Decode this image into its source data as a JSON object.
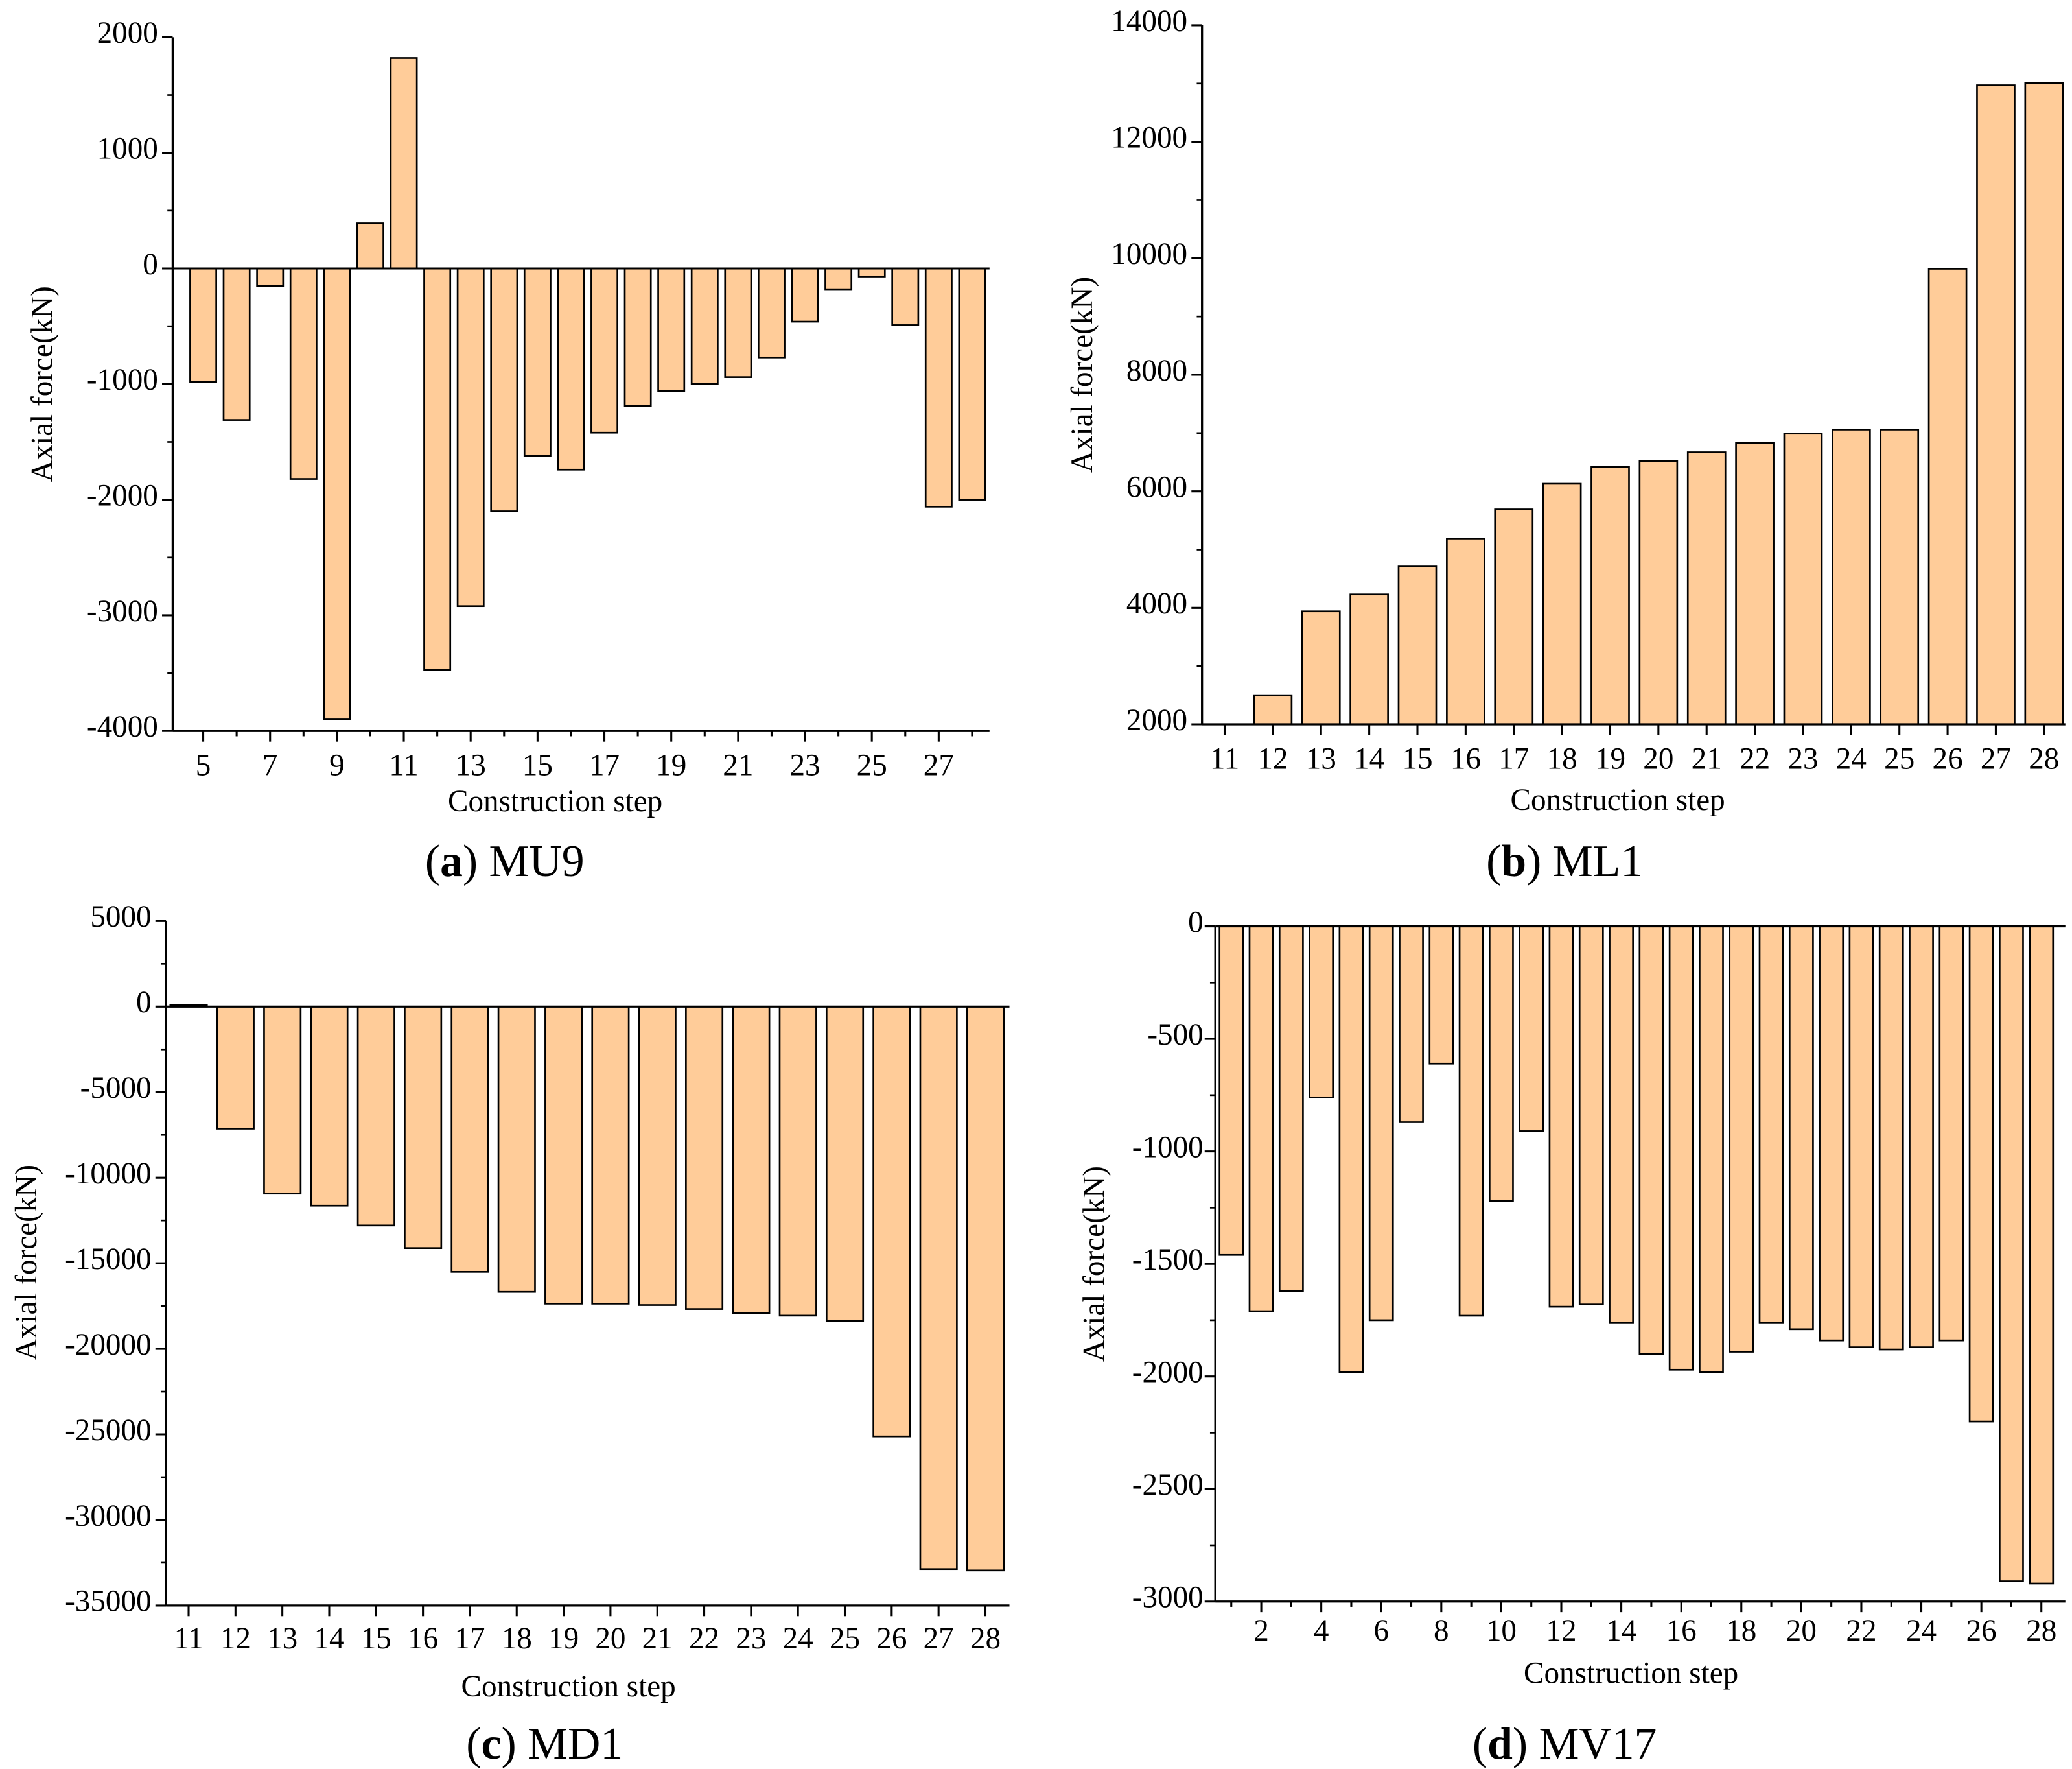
{
  "colors": {
    "bar_fill": "#FFCC99",
    "bar_stroke": "#000000",
    "axis": "#000000"
  },
  "chart_data": [
    {
      "type": "bar",
      "caption": "(a) MU9",
      "xlabel": "Construction step",
      "ylabel": "Axial force(kN)",
      "categories": [
        5,
        6,
        7,
        8,
        9,
        10,
        11,
        12,
        13,
        14,
        15,
        16,
        17,
        18,
        19,
        20,
        21,
        22,
        23,
        24,
        25,
        26,
        27,
        28
      ],
      "xtick_labels": [
        "5",
        "7",
        "9",
        "11",
        "13",
        "15",
        "17",
        "19",
        "21",
        "23",
        "25",
        "27"
      ],
      "values": [
        -980,
        -1310,
        -150,
        -1820,
        -3900,
        390,
        1820,
        -3470,
        -2920,
        -2100,
        -1620,
        -1740,
        -1420,
        -1190,
        -1060,
        -1000,
        -940,
        -770,
        -460,
        -180,
        -70,
        -490,
        -2060,
        -2000
      ],
      "ylim": [
        -4000,
        2000
      ],
      "yticks": [
        -4000,
        -3000,
        -2000,
        -1000,
        0,
        1000,
        2000
      ],
      "grid": false
    },
    {
      "type": "bar",
      "caption": "(b) ML1",
      "xlabel": "Construction step",
      "ylabel": "Axial force(kN)",
      "categories": [
        11,
        12,
        13,
        14,
        15,
        16,
        17,
        18,
        19,
        20,
        21,
        22,
        23,
        24,
        25,
        26,
        27,
        28
      ],
      "xtick_labels": [
        "11",
        "12",
        "13",
        "14",
        "15",
        "16",
        "17",
        "18",
        "19",
        "20",
        "21",
        "22",
        "23",
        "24",
        "25",
        "26",
        "27",
        "28"
      ],
      "values": [
        2000,
        2500,
        3940,
        4230,
        4710,
        5190,
        5690,
        6130,
        6420,
        6520,
        6670,
        6830,
        6990,
        7060,
        7060,
        9820,
        12970,
        13010
      ],
      "ylim": [
        2000,
        14000
      ],
      "yticks": [
        2000,
        4000,
        6000,
        8000,
        10000,
        12000,
        14000
      ],
      "grid": false
    },
    {
      "type": "bar",
      "caption": "(c) MD1",
      "xlabel": "Construction step",
      "ylabel": "Axial force(kN)",
      "categories": [
        11,
        12,
        13,
        14,
        15,
        16,
        17,
        18,
        19,
        20,
        21,
        22,
        23,
        24,
        25,
        26,
        27,
        28
      ],
      "xtick_labels": [
        "11",
        "12",
        "13",
        "14",
        "15",
        "16",
        "17",
        "18",
        "19",
        "20",
        "21",
        "22",
        "23",
        "24",
        "25",
        "26",
        "27",
        "28"
      ],
      "values": [
        100,
        -7130,
        -10930,
        -11630,
        -12790,
        -14110,
        -15500,
        -16670,
        -17360,
        -17360,
        -17440,
        -17670,
        -17900,
        -18060,
        -18370,
        -25120,
        -32870,
        -32950
      ],
      "ylim": [
        -35000,
        5000
      ],
      "yticks": [
        -35000,
        -30000,
        -25000,
        -20000,
        -15000,
        -10000,
        -5000,
        0,
        5000
      ],
      "grid": false
    },
    {
      "type": "bar",
      "caption": "(d) MV17",
      "xlabel": "Construction step",
      "ylabel": "Axial force(kN)",
      "categories": [
        1,
        2,
        3,
        4,
        5,
        6,
        7,
        8,
        9,
        10,
        11,
        12,
        13,
        14,
        15,
        16,
        17,
        18,
        19,
        20,
        21,
        22,
        23,
        24,
        25,
        26,
        27,
        28
      ],
      "xtick_labels": [
        "2",
        "4",
        "6",
        "8",
        "10",
        "12",
        "14",
        "16",
        "18",
        "20",
        "22",
        "24",
        "26",
        "28"
      ],
      "values": [
        -1460,
        -1710,
        -1620,
        -760,
        -1980,
        -1750,
        -870,
        -610,
        -1730,
        -1220,
        -910,
        -1690,
        -1680,
        -1760,
        -1900,
        -1970,
        -1980,
        -1890,
        -1760,
        -1790,
        -1840,
        -1870,
        -1880,
        -1870,
        -1840,
        -2200,
        -2910,
        -2920
      ],
      "ylim": [
        -3000,
        0
      ],
      "yticks": [
        -3000,
        -2500,
        -2000,
        -1500,
        -1000,
        -500,
        0
      ],
      "grid": false
    }
  ]
}
